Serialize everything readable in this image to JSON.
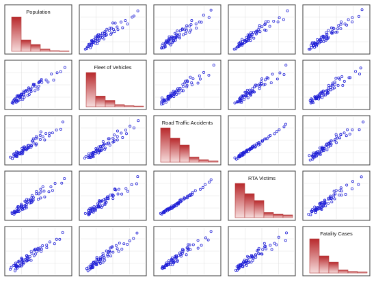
{
  "chart_data": {
    "type": "scatter",
    "variables": [
      "Population",
      "Fleet of Vehicles",
      "Road Traffic Accidents",
      "RTA Victims",
      "Fatality Cases"
    ],
    "histogram_counts": [
      [
        30,
        10,
        6,
        2,
        0.6,
        0.4
      ],
      [
        32,
        10,
        6,
        2,
        1,
        0.6
      ],
      [
        20,
        14,
        10,
        3,
        1.4,
        0.8
      ],
      [
        20,
        14,
        10,
        3,
        2,
        1.6
      ],
      [
        22,
        11,
        7,
        2,
        1,
        0.8
      ]
    ],
    "scatter_points": [
      [
        0.05,
        0.06
      ],
      [
        0.07,
        0.08
      ],
      [
        0.08,
        0.07
      ],
      [
        0.09,
        0.1
      ],
      [
        0.1,
        0.09
      ],
      [
        0.11,
        0.12
      ],
      [
        0.12,
        0.11
      ],
      [
        0.13,
        0.14
      ],
      [
        0.14,
        0.12
      ],
      [
        0.15,
        0.15
      ],
      [
        0.16,
        0.13
      ],
      [
        0.17,
        0.18
      ],
      [
        0.18,
        0.16
      ],
      [
        0.19,
        0.2
      ],
      [
        0.2,
        0.17
      ],
      [
        0.21,
        0.22
      ],
      [
        0.22,
        0.19
      ],
      [
        0.23,
        0.25
      ],
      [
        0.24,
        0.21
      ],
      [
        0.25,
        0.27
      ],
      [
        0.26,
        0.23
      ],
      [
        0.27,
        0.3
      ],
      [
        0.28,
        0.24
      ],
      [
        0.29,
        0.33
      ],
      [
        0.3,
        0.26
      ],
      [
        0.31,
        0.35
      ],
      [
        0.32,
        0.28
      ],
      [
        0.33,
        0.38
      ],
      [
        0.34,
        0.3
      ],
      [
        0.35,
        0.42
      ],
      [
        0.36,
        0.32
      ],
      [
        0.38,
        0.45
      ],
      [
        0.4,
        0.36
      ],
      [
        0.42,
        0.48
      ],
      [
        0.44,
        0.4
      ],
      [
        0.46,
        0.52
      ],
      [
        0.48,
        0.44
      ],
      [
        0.5,
        0.55
      ],
      [
        0.52,
        0.48
      ],
      [
        0.55,
        0.6
      ],
      [
        0.58,
        0.52
      ],
      [
        0.62,
        0.66
      ],
      [
        0.66,
        0.58
      ],
      [
        0.7,
        0.72
      ],
      [
        0.75,
        0.65
      ],
      [
        0.8,
        0.8
      ],
      [
        0.88,
        0.78
      ],
      [
        0.93,
        0.96
      ],
      [
        0.12,
        0.16
      ],
      [
        0.16,
        0.2
      ],
      [
        0.2,
        0.26
      ],
      [
        0.24,
        0.3
      ],
      [
        0.28,
        0.34
      ],
      [
        0.32,
        0.36
      ],
      [
        0.36,
        0.4
      ],
      [
        0.4,
        0.46
      ],
      [
        0.44,
        0.5
      ],
      [
        0.48,
        0.56
      ],
      [
        0.52,
        0.62
      ],
      [
        0.56,
        0.68
      ],
      [
        0.1,
        0.14
      ],
      [
        0.14,
        0.18
      ],
      [
        0.18,
        0.22
      ],
      [
        0.22,
        0.28
      ],
      [
        0.26,
        0.32
      ]
    ],
    "grid": true
  }
}
